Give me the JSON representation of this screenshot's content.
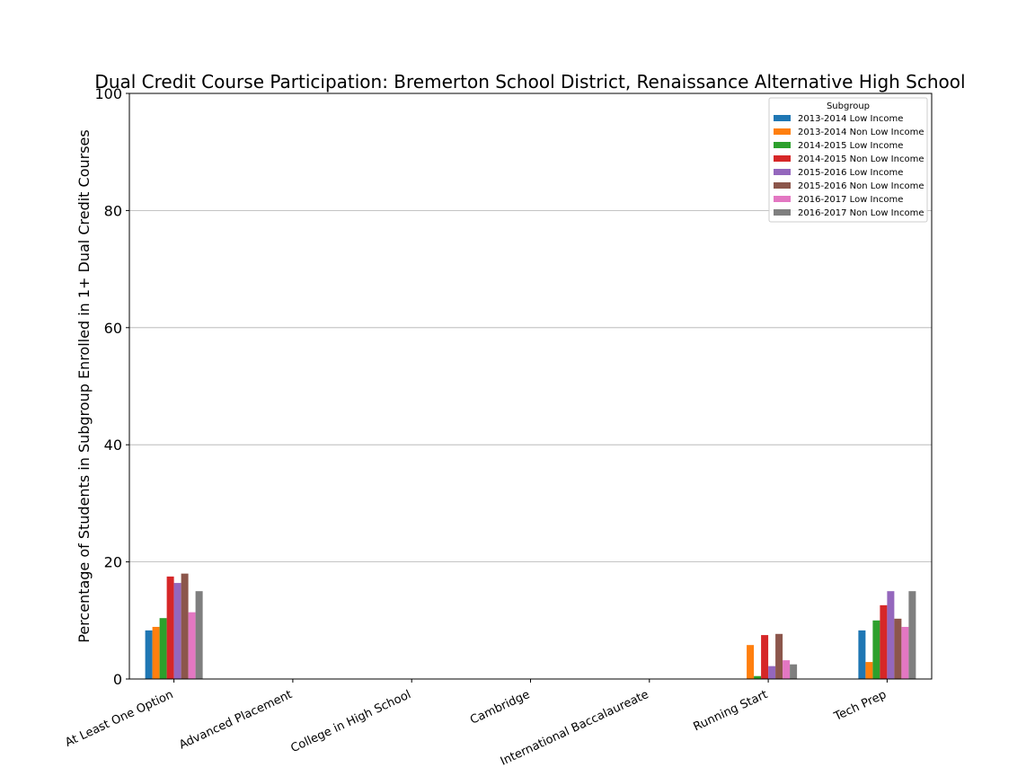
{
  "chart_data": {
    "type": "bar",
    "title": "Dual Credit Course Participation: Bremerton School District, Renaissance Alternative High School",
    "xlabel": "",
    "ylabel": "Percentage of Students in Subgroup Enrolled in 1+ Dual Credit Courses",
    "ylim": [
      0,
      100
    ],
    "yticks": [
      "0",
      "20",
      "40",
      "60",
      "80",
      "100"
    ],
    "grid": "horizontal",
    "legend_title": "Subgroup",
    "legend_position": "top-right",
    "categories": [
      "At Least One Option",
      "Advanced Placement",
      "College in High School",
      "Cambridge",
      "International Baccalaureate",
      "Running Start",
      "Tech Prep"
    ],
    "series": [
      {
        "name": "2013-2014 Low Income",
        "color": "#1f77b4",
        "values": [
          8.3,
          0,
          0,
          0,
          0,
          0,
          8.3
        ]
      },
      {
        "name": "2013-2014 Non Low Income",
        "color": "#ff7f0e",
        "values": [
          8.9,
          0,
          0,
          0,
          0,
          5.8,
          2.9
        ]
      },
      {
        "name": "2014-2015 Low Income",
        "color": "#2ca02c",
        "values": [
          10.4,
          0,
          0,
          0,
          0,
          0.5,
          10.0
        ]
      },
      {
        "name": "2014-2015 Non Low Income",
        "color": "#d62728",
        "values": [
          17.5,
          0,
          0,
          0,
          0,
          7.5,
          12.6
        ]
      },
      {
        "name": "2015-2016 Low Income",
        "color": "#9467bd",
        "values": [
          16.4,
          0,
          0,
          0,
          0,
          2.2,
          15.0
        ]
      },
      {
        "name": "2015-2016 Non Low Income",
        "color": "#8c564b",
        "values": [
          18.0,
          0,
          0,
          0,
          0,
          7.7,
          10.3
        ]
      },
      {
        "name": "2016-2017 Low Income",
        "color": "#e377c2",
        "values": [
          11.4,
          0,
          0,
          0,
          0,
          3.2,
          8.9
        ]
      },
      {
        "name": "2016-2017 Non Low Income",
        "color": "#7f7f7f",
        "values": [
          15.0,
          0,
          0,
          0,
          0,
          2.5,
          15.0
        ]
      }
    ]
  }
}
